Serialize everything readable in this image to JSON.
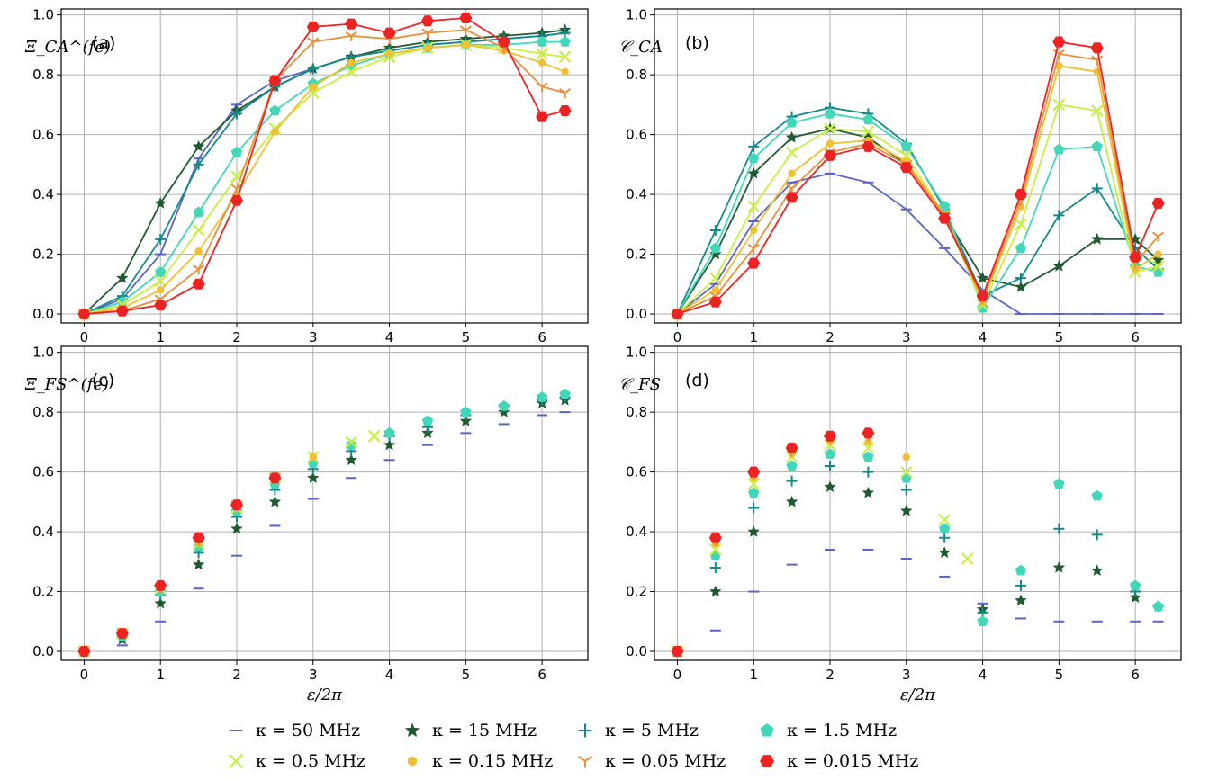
{
  "legend": [
    {
      "label": "κ = 50 MHz",
      "color": "#5a64c8",
      "marker": "dash"
    },
    {
      "label": "κ = 15 MHz",
      "color": "#1f5a30",
      "marker": "star"
    },
    {
      "label": "κ = 5 MHz",
      "color": "#138a8a",
      "marker": "plus"
    },
    {
      "label": "κ = 1.5 MHz",
      "color": "#40d8b8",
      "marker": "pentagon"
    },
    {
      "label": "κ = 0.5 MHz",
      "color": "#c8f040",
      "marker": "x"
    },
    {
      "label": "κ = 0.15 MHz",
      "color": "#f0c030",
      "marker": "dot"
    },
    {
      "label": "κ = 0.05 MHz",
      "color": "#e8903a",
      "marker": "tri"
    },
    {
      "label": "κ = 0.015 MHz",
      "color": "#ee2222",
      "marker": "hex"
    }
  ],
  "chart_data": [
    {
      "panel": "(a)",
      "type": "line",
      "ylabel": "Ξ_CA^(fe)",
      "xlabel": "",
      "xlim": [
        0,
        6.3
      ],
      "ylim": [
        0,
        1.0
      ],
      "xticks": [
        "0",
        "1",
        "2",
        "3",
        "4",
        "5",
        "6"
      ],
      "yticks": [
        "0.0",
        "0.2",
        "0.4",
        "0.6",
        "0.8",
        "1.0"
      ],
      "grid": true,
      "x": [
        0,
        0.5,
        1,
        1.5,
        2,
        2.5,
        3,
        3.5,
        4,
        4.5,
        5,
        5.5,
        6,
        6.3
      ],
      "series": [
        {
          "name": "κ = 50 MHz",
          "values": [
            0,
            0.05,
            0.2,
            0.52,
            0.7,
            0.78,
            0.82,
            0.86,
            0.88,
            0.9,
            0.91,
            0.92,
            0.93,
            0.94
          ]
        },
        {
          "name": "κ = 15 MHz",
          "values": [
            0,
            0.12,
            0.37,
            0.56,
            0.68,
            0.76,
            0.82,
            0.86,
            0.89,
            0.91,
            0.92,
            0.93,
            0.94,
            0.95
          ]
        },
        {
          "name": "κ = 5 MHz",
          "values": [
            0,
            0.06,
            0.25,
            0.5,
            0.67,
            0.76,
            0.82,
            0.86,
            0.88,
            0.9,
            0.91,
            0.92,
            0.93,
            0.94
          ]
        },
        {
          "name": "κ = 1.5 MHz",
          "values": [
            0,
            0.04,
            0.14,
            0.34,
            0.54,
            0.68,
            0.77,
            0.83,
            0.87,
            0.89,
            0.9,
            0.9,
            0.91,
            0.91
          ]
        },
        {
          "name": "κ = 0.5 MHz",
          "values": [
            0,
            0.03,
            0.11,
            0.28,
            0.46,
            0.62,
            0.74,
            0.81,
            0.86,
            0.89,
            0.9,
            0.89,
            0.87,
            0.86
          ]
        },
        {
          "name": "κ = 0.15 MHz",
          "values": [
            0,
            0.02,
            0.08,
            0.21,
            0.4,
            0.61,
            0.76,
            0.84,
            0.87,
            0.89,
            0.9,
            0.88,
            0.84,
            0.81
          ]
        },
        {
          "name": "κ = 0.05 MHz",
          "values": [
            0,
            0.01,
            0.05,
            0.15,
            0.42,
            0.78,
            0.91,
            0.93,
            0.92,
            0.94,
            0.95,
            0.89,
            0.76,
            0.74
          ]
        },
        {
          "name": "κ = 0.015 MHz",
          "values": [
            0,
            0.01,
            0.03,
            0.1,
            0.38,
            0.78,
            0.96,
            0.97,
            0.94,
            0.98,
            0.99,
            0.91,
            0.66,
            0.68
          ]
        }
      ]
    },
    {
      "panel": "(b)",
      "type": "line",
      "ylabel": "𝒞_CA",
      "xlabel": "",
      "xlim": [
        0,
        6.3
      ],
      "ylim": [
        0,
        1.0
      ],
      "xticks": [
        "0",
        "1",
        "2",
        "3",
        "4",
        "5",
        "6"
      ],
      "yticks": [
        "0.0",
        "0.2",
        "0.4",
        "0.6",
        "0.8",
        "1.0"
      ],
      "grid": true,
      "x": [
        0,
        0.5,
        1,
        1.5,
        2,
        2.5,
        3,
        3.5,
        4,
        4.5,
        5,
        5.5,
        6,
        6.3
      ],
      "series": [
        {
          "name": "κ = 50 MHz",
          "values": [
            0,
            0.1,
            0.31,
            0.44,
            0.47,
            0.44,
            0.35,
            0.22,
            0.08,
            0.0,
            0.0,
            0.0,
            0.0,
            0.0
          ]
        },
        {
          "name": "κ = 15 MHz",
          "values": [
            0,
            0.2,
            0.47,
            0.59,
            0.62,
            0.59,
            0.5,
            0.33,
            0.12,
            0.09,
            0.16,
            0.25,
            0.25,
            0.18
          ]
        },
        {
          "name": "κ = 5 MHz",
          "values": [
            0,
            0.28,
            0.56,
            0.66,
            0.69,
            0.67,
            0.57,
            0.35,
            0.06,
            0.12,
            0.33,
            0.42,
            0.22,
            0.15
          ]
        },
        {
          "name": "κ = 1.5 MHz",
          "values": [
            0,
            0.22,
            0.52,
            0.64,
            0.67,
            0.65,
            0.56,
            0.36,
            0.02,
            0.22,
            0.55,
            0.56,
            0.16,
            0.14
          ]
        },
        {
          "name": "κ = 0.5 MHz",
          "values": [
            0,
            0.12,
            0.36,
            0.54,
            0.62,
            0.61,
            0.53,
            0.33,
            0.03,
            0.3,
            0.7,
            0.68,
            0.14,
            0.16
          ]
        },
        {
          "name": "κ = 0.15 MHz",
          "values": [
            0,
            0.08,
            0.28,
            0.47,
            0.57,
            0.58,
            0.51,
            0.33,
            0.04,
            0.36,
            0.83,
            0.81,
            0.15,
            0.2
          ]
        },
        {
          "name": "κ = 0.05 MHz",
          "values": [
            0,
            0.06,
            0.22,
            0.42,
            0.54,
            0.57,
            0.5,
            0.33,
            0.05,
            0.38,
            0.87,
            0.85,
            0.17,
            0.26
          ]
        },
        {
          "name": "κ = 0.015 MHz",
          "values": [
            0,
            0.04,
            0.17,
            0.39,
            0.53,
            0.56,
            0.49,
            0.32,
            0.06,
            0.4,
            0.91,
            0.89,
            0.19,
            0.37
          ]
        }
      ]
    },
    {
      "panel": "(c)",
      "type": "scatter",
      "ylabel": "Ξ_FS^(fe)",
      "xlabel": "ε/2π",
      "xlim": [
        0,
        6.3
      ],
      "ylim": [
        0,
        1.0
      ],
      "xticks": [
        "0",
        "1",
        "2",
        "3",
        "4",
        "5",
        "6"
      ],
      "yticks": [
        "0.0",
        "0.2",
        "0.4",
        "0.6",
        "0.8",
        "1.0"
      ],
      "grid": true,
      "series": [
        {
          "name": "κ = 50 MHz",
          "x": [
            0,
            0.5,
            1,
            1.5,
            2,
            2.5,
            3,
            3.5,
            4,
            4.5,
            5,
            5.5,
            6,
            6.3
          ],
          "values": [
            0,
            0.02,
            0.1,
            0.21,
            0.32,
            0.42,
            0.51,
            0.58,
            0.64,
            0.69,
            0.73,
            0.76,
            0.79,
            0.8
          ]
        },
        {
          "name": "κ = 15 MHz",
          "x": [
            0,
            0.5,
            1,
            1.5,
            2,
            2.5,
            3,
            3.5,
            4,
            4.5,
            5,
            5.5,
            6,
            6.3
          ],
          "values": [
            0,
            0.04,
            0.16,
            0.29,
            0.41,
            0.5,
            0.58,
            0.64,
            0.69,
            0.73,
            0.77,
            0.8,
            0.83,
            0.84
          ]
        },
        {
          "name": "κ = 5 MHz",
          "x": [
            0,
            0.5,
            1,
            1.5,
            2,
            2.5,
            3,
            3.5,
            4,
            4.5,
            5,
            5.5,
            6,
            6.3
          ],
          "values": [
            0,
            0.05,
            0.19,
            0.33,
            0.45,
            0.54,
            0.61,
            0.67,
            0.72,
            0.75,
            0.79,
            0.82,
            0.84,
            0.85
          ]
        },
        {
          "name": "κ = 1.5 MHz",
          "x": [
            0,
            0.5,
            1,
            1.5,
            2,
            2.5,
            3,
            3.5,
            4,
            4.5,
            5,
            5.5,
            6,
            6.3
          ],
          "values": [
            0,
            0.05,
            0.2,
            0.35,
            0.47,
            0.56,
            0.63,
            0.69,
            0.73,
            0.77,
            0.8,
            0.82,
            0.85,
            0.86
          ]
        },
        {
          "name": "κ = 0.5 MHz",
          "x": [
            0,
            0.5,
            1,
            1.5,
            2,
            2.5,
            3,
            3.5,
            3.8
          ],
          "values": [
            0,
            0.06,
            0.21,
            0.36,
            0.48,
            0.58,
            0.65,
            0.7,
            0.72
          ]
        },
        {
          "name": "κ = 0.15 MHz",
          "x": [
            0,
            0.5,
            1,
            1.5,
            2,
            2.5,
            3
          ],
          "values": [
            0,
            0.06,
            0.21,
            0.36,
            0.48,
            0.58,
            0.65
          ]
        },
        {
          "name": "κ = 0.05 MHz",
          "x": [
            0,
            0.5,
            1,
            1.5,
            2,
            2.5
          ],
          "values": [
            0,
            0.06,
            0.21,
            0.37,
            0.49,
            0.58
          ]
        },
        {
          "name": "κ = 0.015 MHz",
          "x": [
            0,
            0.5,
            1,
            1.5,
            2,
            2.5
          ],
          "values": [
            0,
            0.06,
            0.22,
            0.38,
            0.49,
            0.58
          ]
        }
      ]
    },
    {
      "panel": "(d)",
      "type": "scatter",
      "ylabel": "𝒞_FS",
      "xlabel": "ε/2π",
      "xlim": [
        0,
        6.3
      ],
      "ylim": [
        0,
        1.0
      ],
      "xticks": [
        "0",
        "1",
        "2",
        "3",
        "4",
        "5",
        "6"
      ],
      "yticks": [
        "0.0",
        "0.2",
        "0.4",
        "0.6",
        "0.8",
        "1.0"
      ],
      "grid": true,
      "series": [
        {
          "name": "κ = 50 MHz",
          "x": [
            0,
            0.5,
            1,
            1.5,
            2,
            2.5,
            3,
            3.5,
            4,
            4.5,
            5,
            5.5,
            6,
            6.3
          ],
          "values": [
            0,
            0.07,
            0.2,
            0.29,
            0.34,
            0.34,
            0.31,
            0.25,
            0.16,
            0.11,
            0.1,
            0.1,
            0.1,
            0.1
          ]
        },
        {
          "name": "κ = 15 MHz",
          "x": [
            0,
            0.5,
            1,
            1.5,
            2,
            2.5,
            3,
            3.5,
            4,
            4.5,
            5,
            5.5,
            6,
            6.3
          ],
          "values": [
            0,
            0.2,
            0.4,
            0.5,
            0.55,
            0.53,
            0.47,
            0.33,
            0.14,
            0.17,
            0.28,
            0.27,
            0.18,
            0.15
          ]
        },
        {
          "name": "κ = 5 MHz",
          "x": [
            0,
            0.5,
            1,
            1.5,
            2,
            2.5,
            3,
            3.5,
            4,
            4.5,
            5,
            5.5,
            6,
            6.3
          ],
          "values": [
            0,
            0.28,
            0.48,
            0.57,
            0.62,
            0.6,
            0.54,
            0.38,
            0.13,
            0.22,
            0.41,
            0.39,
            0.2,
            0.15
          ]
        },
        {
          "name": "κ = 1.5 MHz",
          "x": [
            0,
            0.5,
            1,
            1.5,
            2,
            2.5,
            3,
            3.5,
            4,
            4.5,
            5,
            5.5,
            6,
            6.3
          ],
          "values": [
            0,
            0.32,
            0.53,
            0.62,
            0.66,
            0.65,
            0.58,
            0.41,
            0.1,
            0.27,
            0.56,
            0.52,
            0.22,
            0.15
          ]
        },
        {
          "name": "κ = 0.5 MHz",
          "x": [
            0,
            0.5,
            1,
            1.5,
            2,
            2.5,
            3,
            3.5,
            3.8
          ],
          "values": [
            0,
            0.34,
            0.56,
            0.65,
            0.69,
            0.68,
            0.6,
            0.44,
            0.31
          ]
        },
        {
          "name": "κ = 0.15 MHz",
          "x": [
            0,
            0.5,
            1,
            1.5,
            2,
            2.5,
            3
          ],
          "values": [
            0,
            0.36,
            0.58,
            0.66,
            0.7,
            0.7,
            0.65
          ]
        },
        {
          "name": "κ = 0.05 MHz",
          "x": [
            0,
            0.5,
            1,
            1.5,
            2,
            2.5
          ],
          "values": [
            0,
            0.37,
            0.59,
            0.67,
            0.71,
            0.72
          ]
        },
        {
          "name": "κ = 0.015 MHz",
          "x": [
            0,
            0.5,
            1,
            1.5,
            2,
            2.5
          ],
          "values": [
            0,
            0.38,
            0.6,
            0.68,
            0.72,
            0.73
          ]
        }
      ]
    }
  ]
}
